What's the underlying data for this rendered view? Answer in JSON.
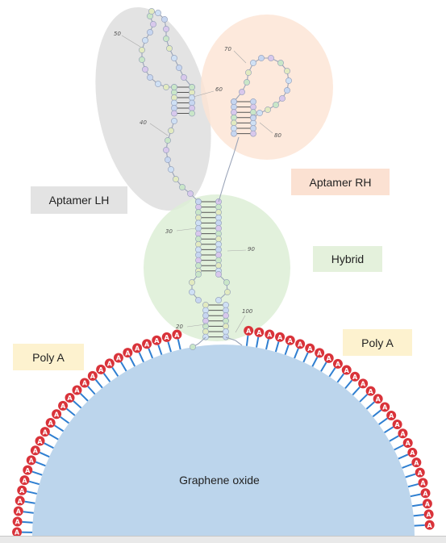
{
  "labels": {
    "aptamer_lh": "Aptamer LH",
    "aptamer_rh": "Aptamer RH",
    "hybrid": "Hybrid",
    "poly_a_left": "Poly A",
    "poly_a_right": "Poly A",
    "graphene_oxide": "Graphene oxide"
  },
  "position_markers": {
    "m20": "20",
    "m30": "30",
    "m40": "40",
    "m50": "50",
    "m60": "60",
    "m70": "70",
    "m80": "80",
    "m90": "90",
    "m100": "100"
  },
  "base_letter": "A",
  "colors": {
    "aptamer_lh_region": "#dcdcdc",
    "aptamer_rh_region": "#fde3d3",
    "hybrid_region": "#ddeed6",
    "aptamer_rh_label_bg": "#fbe1d2",
    "hybrid_label_bg": "#e4f1dc",
    "poly_a_label_bg": "#fdf2cf",
    "aptamer_lh_label_bg": "#e3e3e3",
    "graphene_fill": "#bcd5ec",
    "adenine": "#d9333a",
    "linker": "#2f7fd1"
  }
}
